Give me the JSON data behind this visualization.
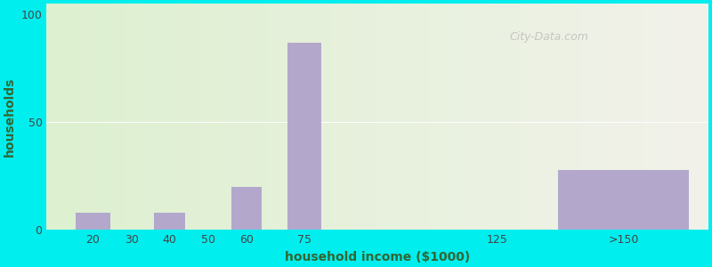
{
  "xlabel": "household income ($1000)",
  "ylabel": "households",
  "background_outer": "#00EEEE",
  "bar_color": "#b3a8cc",
  "bar_positions": [
    20,
    40,
    60,
    75,
    158
  ],
  "bar_heights": [
    8,
    8,
    20,
    87,
    28
  ],
  "bar_widths": [
    9,
    8,
    8,
    9,
    34
  ],
  "xtick_labels": [
    "20",
    "30",
    "40",
    "50",
    "60",
    "75",
    "125",
    ">150"
  ],
  "xtick_positions": [
    20,
    30,
    40,
    50,
    60,
    75,
    125,
    158
  ],
  "ytick_labels": [
    "0",
    "50",
    "100"
  ],
  "ytick_positions": [
    0,
    50,
    100
  ],
  "ylim": [
    0,
    105
  ],
  "xlim": [
    8,
    180
  ],
  "watermark": "City-Data.com",
  "title_fontsize": 13,
  "subtitle_fontsize": 11,
  "axis_label_fontsize": 10,
  "tick_fontsize": 9,
  "title_color": "#222222",
  "subtitle_color": "#2a7a5a",
  "axis_label_color": "#336633",
  "grad_left": "#ddf0d0",
  "grad_right": "#f2f2ea"
}
